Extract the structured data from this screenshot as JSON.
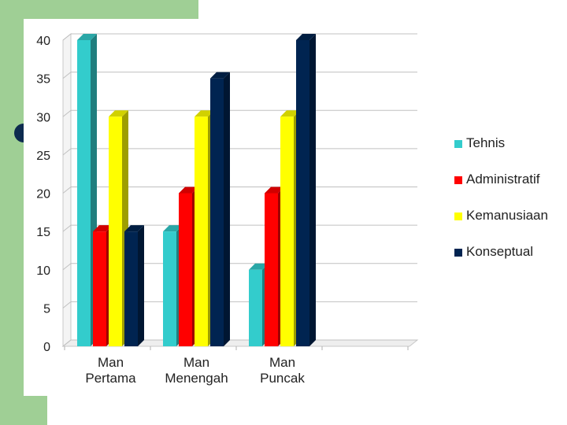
{
  "chart_data": {
    "type": "bar",
    "title": "",
    "xlabel": "",
    "ylabel": "",
    "categories": [
      [
        "Man",
        "Pertama"
      ],
      [
        "Man",
        "Menengah"
      ],
      [
        "Man",
        "Puncak"
      ]
    ],
    "series": [
      {
        "name": "Tehnis",
        "values": [
          40,
          15,
          10
        ],
        "color": "#33cccc"
      },
      {
        "name": "Administratif",
        "values": [
          15,
          20,
          20
        ],
        "color": "#ff0000"
      },
      {
        "name": "Kemanusiaan",
        "values": [
          30,
          30,
          30
        ],
        "color": "#ffff00"
      },
      {
        "name": "Konseptual",
        "values": [
          15,
          35,
          40
        ],
        "color": "#002451"
      }
    ],
    "ylim": [
      0,
      40
    ],
    "yticks": [
      0,
      5,
      10,
      15,
      20,
      25,
      30,
      35,
      40
    ],
    "grid": true,
    "legend": "right"
  }
}
